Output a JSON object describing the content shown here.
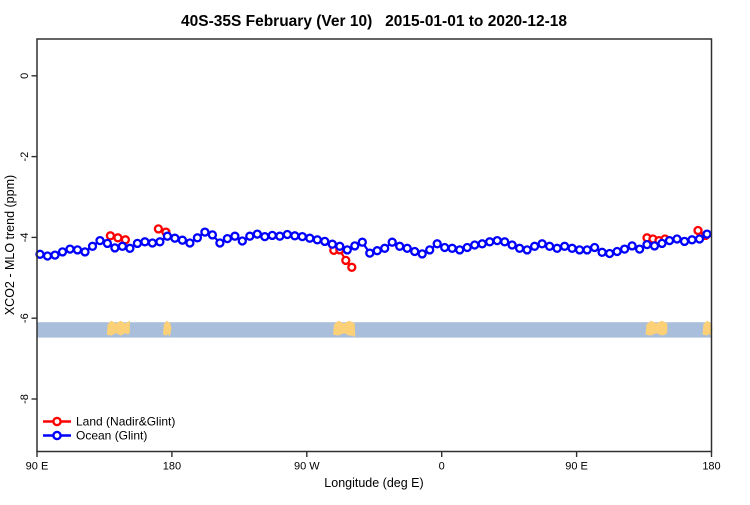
{
  "frame_color": "#303030",
  "chart_data": {
    "type": "line",
    "title": "40S-35S February (Ver 10)   2015-01-01 to 2020-12-18",
    "xlabel": "Longitude (deg E)",
    "ylabel": "XCO2 - MLO trend (ppm)",
    "xlim": [
      90,
      540
    ],
    "ylim": [
      -9.3,
      0.91
    ],
    "grid": false,
    "x_ticks": [
      90,
      180,
      270,
      360,
      450,
      540
    ],
    "x_tick_labels": [
      "90 E",
      "180",
      "90 W",
      "0",
      "90 E",
      "180"
    ],
    "y_ticks": [
      0,
      -2,
      -4,
      -6,
      -8
    ],
    "y_tick_labels": [
      "0",
      "-2",
      "-4",
      "-6",
      "-8"
    ],
    "legend": {
      "position": "bottom-left",
      "items": [
        {
          "id": "land",
          "label": "Land (Nadir&Glint)",
          "color": "#ff0000"
        },
        {
          "id": "ocean",
          "label": "Ocean (Glint)",
          "color": "#0000ff"
        }
      ]
    },
    "series": [
      {
        "id": "land",
        "name": "Land (Nadir&Glint)",
        "color": "#ff0000",
        "marker": "open-circle",
        "segments": [
          {
            "x": [
              139,
              144,
              149
            ],
            "y": [
              -3.96,
              -4.01,
              -4.06
            ]
          },
          {
            "x": [
              171,
              176
            ],
            "y": [
              -3.79,
              -3.87
            ]
          },
          {
            "x": [
              288,
              292,
              296,
              300
            ],
            "y": [
              -4.32,
              -4.31,
              -4.57,
              -4.74
            ]
          },
          {
            "x": [
              497,
              501,
              505,
              509
            ],
            "y": [
              -4.01,
              -4.04,
              -4.08,
              -4.04
            ]
          },
          {
            "x": [
              531,
              536
            ],
            "y": [
              -3.83,
              -3.95
            ]
          }
        ]
      },
      {
        "id": "ocean",
        "name": "Ocean (Glint)",
        "color": "#0000ff",
        "marker": "open-circle",
        "segments": [
          {
            "x": [
              92,
              97,
              102,
              107,
              112,
              117,
              122,
              127,
              132,
              137,
              142,
              147,
              152,
              157,
              162,
              167,
              172,
              177,
              182,
              187,
              192,
              197,
              202,
              207,
              212,
              217,
              222,
              227,
              232,
              237,
              242,
              247,
              252,
              257,
              262,
              267,
              272,
              277,
              282,
              287,
              292,
              297,
              302,
              307,
              312,
              317,
              322,
              327,
              332,
              337,
              342,
              347,
              352,
              357,
              362,
              367,
              372,
              377,
              382,
              387,
              392,
              397,
              402,
              407,
              412,
              417,
              422,
              427,
              432,
              437,
              442,
              447,
              452,
              457,
              462,
              467,
              472,
              477,
              482,
              487,
              492,
              497,
              502,
              507,
              512,
              517,
              522,
              527,
              532,
              537
            ],
            "y": [
              -4.42,
              -4.46,
              -4.44,
              -4.36,
              -4.29,
              -4.31,
              -4.36,
              -4.22,
              -4.08,
              -4.15,
              -4.26,
              -4.22,
              -4.27,
              -4.15,
              -4.11,
              -4.14,
              -4.11,
              -3.97,
              -4.02,
              -4.07,
              -4.14,
              -4.01,
              -3.87,
              -3.94,
              -4.14,
              -4.03,
              -3.97,
              -4.09,
              -3.97,
              -3.92,
              -3.98,
              -3.95,
              -3.97,
              -3.93,
              -3.96,
              -3.98,
              -4.02,
              -4.06,
              -4.1,
              -4.17,
              -4.22,
              -4.31,
              -4.21,
              -4.12,
              -4.39,
              -4.33,
              -4.27,
              -4.12,
              -4.22,
              -4.27,
              -4.35,
              -4.41,
              -4.31,
              -4.16,
              -4.25,
              -4.27,
              -4.31,
              -4.25,
              -4.19,
              -4.16,
              -4.11,
              -4.08,
              -4.11,
              -4.19,
              -4.27,
              -4.31,
              -4.22,
              -4.16,
              -4.22,
              -4.27,
              -4.22,
              -4.27,
              -4.31,
              -4.31,
              -4.25,
              -4.37,
              -4.4,
              -4.35,
              -4.29,
              -4.21,
              -4.29,
              -4.18,
              -4.21,
              -4.15,
              -4.08,
              -4.04,
              -4.1,
              -4.06,
              -4.04,
              -3.92
            ]
          }
        ]
      }
    ],
    "map_strip": {
      "description": "latitude band 40S-35S land/ocean strip",
      "y_top": -6.1,
      "y_bottom": -6.48,
      "ocean_color": "#a9bedb",
      "land_color": "#fbd077",
      "land_segments": [
        {
          "name": "australia",
          "x0": 136.5,
          "x1": 152,
          "kind": "blob"
        },
        {
          "name": "new-zealand",
          "x0": 174,
          "x1": 179,
          "kind": "tail"
        },
        {
          "name": "south-america",
          "x0": 287.5,
          "x1": 302,
          "kind": "blob-tail"
        },
        {
          "name": "australia-2",
          "x0": 496,
          "x1": 510.5,
          "kind": "blob"
        },
        {
          "name": "new-zealand-2",
          "x0": 534,
          "x1": 540,
          "kind": "tail"
        }
      ]
    }
  }
}
